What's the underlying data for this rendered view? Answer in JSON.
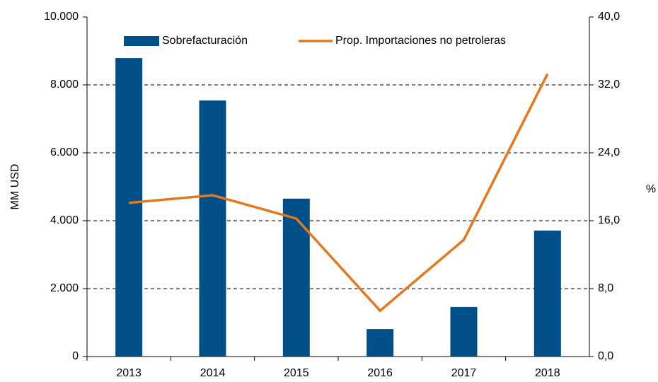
{
  "chart_data": {
    "type": "bar_line",
    "categories": [
      "2013",
      "2014",
      "2015",
      "2016",
      "2017",
      "2018"
    ],
    "series": [
      {
        "name": "Sobrefacturación",
        "type": "bar",
        "color": "#004f88",
        "values": [
          8790,
          7540,
          4650,
          810,
          1460,
          3710
        ]
      },
      {
        "name": "Prop. Importaciones no petroleras",
        "type": "line",
        "axis": "y2",
        "color": "#e3781e",
        "values": [
          18.1,
          19.0,
          16.25,
          5.4,
          13.75,
          33.3
        ]
      }
    ],
    "ylabel": "MM USD",
    "y2label": "%",
    "ylim": [
      0,
      10000
    ],
    "yticks": [
      0,
      {
        "value": 2000,
        "label": "2.000"
      },
      {
        "value": 4000,
        "label": "4.000"
      },
      {
        "value": 6000,
        "label": "6.000"
      },
      {
        "value": 8000,
        "label": "8.000"
      },
      {
        "value": 10000,
        "label": "10.000"
      }
    ],
    "y2lim": [
      0,
      40
    ],
    "y2ticks": [
      {
        "value": 0,
        "label": "0,0"
      },
      {
        "value": 8,
        "label": "8,0"
      },
      {
        "value": 16,
        "label": "16,0"
      },
      {
        "value": 24,
        "label": "24,0"
      },
      {
        "value": 32,
        "label": "32,0"
      },
      {
        "value": 40,
        "label": "40,0"
      }
    ],
    "grid": true,
    "legend": "top"
  }
}
